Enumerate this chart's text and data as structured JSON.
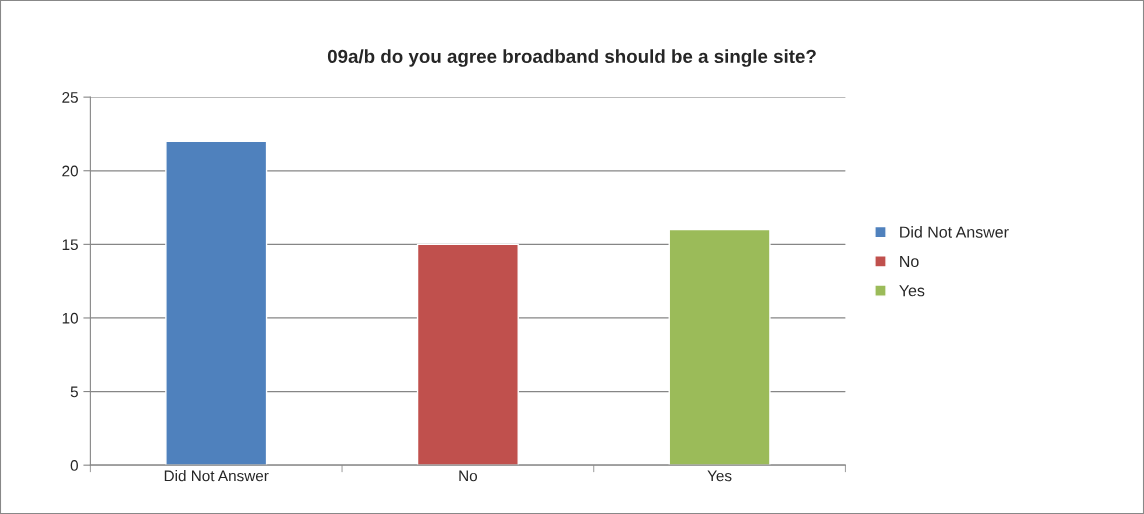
{
  "chart_data": {
    "type": "bar",
    "title": "09a/b do you agree broadband should be a single site?",
    "categories": [
      "Did Not Answer",
      "No",
      "Yes"
    ],
    "series": [
      {
        "name": "Did Not Answer",
        "color": "#4f81bd",
        "values": [
          22,
          null,
          null
        ]
      },
      {
        "name": "No",
        "color": "#c0504d",
        "values": [
          null,
          15,
          null
        ]
      },
      {
        "name": "Yes",
        "color": "#9bbb59",
        "values": [
          null,
          null,
          16
        ]
      }
    ],
    "ylim": [
      0,
      25
    ],
    "yticks": [
      0,
      5,
      10,
      15,
      20,
      25
    ],
    "grid": "y",
    "legend": "right"
  }
}
